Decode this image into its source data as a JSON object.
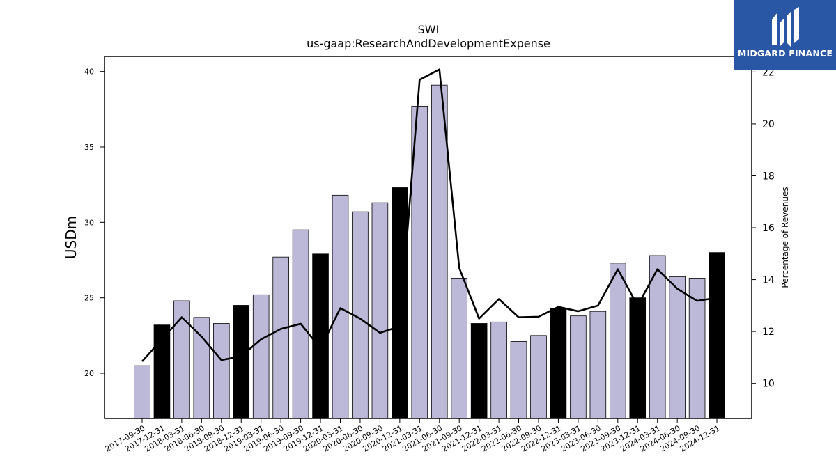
{
  "chart_data": {
    "type": "bar",
    "title": "SWI",
    "subtitle": "us-gaap:ResearchAndDevelopmentExpense",
    "ylabel": "USDm",
    "y2label": "Percentage of Revenues",
    "ylim": [
      17,
      41
    ],
    "y2lim": [
      8.65,
      22.6
    ],
    "yticks": [
      20,
      25,
      30,
      35,
      40
    ],
    "y2ticks": [
      10,
      12,
      14,
      16,
      18,
      20,
      22
    ],
    "categories": [
      "2017-09-30",
      "2017-12-31",
      "2018-03-31",
      "2018-06-30",
      "2018-09-30",
      "2018-12-31",
      "2019-03-31",
      "2019-06-30",
      "2019-09-30",
      "2019-12-31",
      "2020-03-31",
      "2020-06-30",
      "2020-09-30",
      "2020-12-31",
      "2021-03-31",
      "2021-06-30",
      "2021-09-30",
      "2021-12-31",
      "2022-03-31",
      "2022-06-30",
      "2022-09-30",
      "2022-12-31",
      "2023-03-31",
      "2023-06-30",
      "2023-09-30",
      "2023-12-31",
      "2024-03-31",
      "2024-06-30",
      "2024-09-30",
      "2024-12-31"
    ],
    "values": [
      20.5,
      23.2,
      24.8,
      23.7,
      23.3,
      24.5,
      25.2,
      27.7,
      29.5,
      27.9,
      31.8,
      30.7,
      31.3,
      32.3,
      37.7,
      39.1,
      26.3,
      23.3,
      23.4,
      22.1,
      22.5,
      24.3,
      23.8,
      24.1,
      27.3,
      25.0,
      27.8,
      26.4,
      26.3,
      28.0
    ],
    "highlight": [
      false,
      true,
      false,
      false,
      false,
      true,
      false,
      false,
      false,
      true,
      false,
      false,
      false,
      true,
      false,
      false,
      false,
      true,
      false,
      false,
      false,
      true,
      false,
      false,
      false,
      true,
      false,
      false,
      false,
      true
    ],
    "line": {
      "name": "Percentage of Revenues",
      "values": [
        10.85,
        11.7,
        12.55,
        11.8,
        10.9,
        11.05,
        11.7,
        12.1,
        12.3,
        11.35,
        12.9,
        12.5,
        11.95,
        12.2,
        21.7,
        22.1,
        14.45,
        12.5,
        13.25,
        12.55,
        12.57,
        12.95,
        12.78,
        13.0,
        14.4,
        13.0,
        14.4,
        13.65,
        13.18,
        13.3
      ]
    },
    "colors": {
      "bar": "#bcb8d8",
      "bar_highlight": "#000000",
      "line": "#000000"
    },
    "grid": false
  },
  "logo": {
    "text": "MIDGARD FINANCE",
    "background": "#2a56a6"
  }
}
